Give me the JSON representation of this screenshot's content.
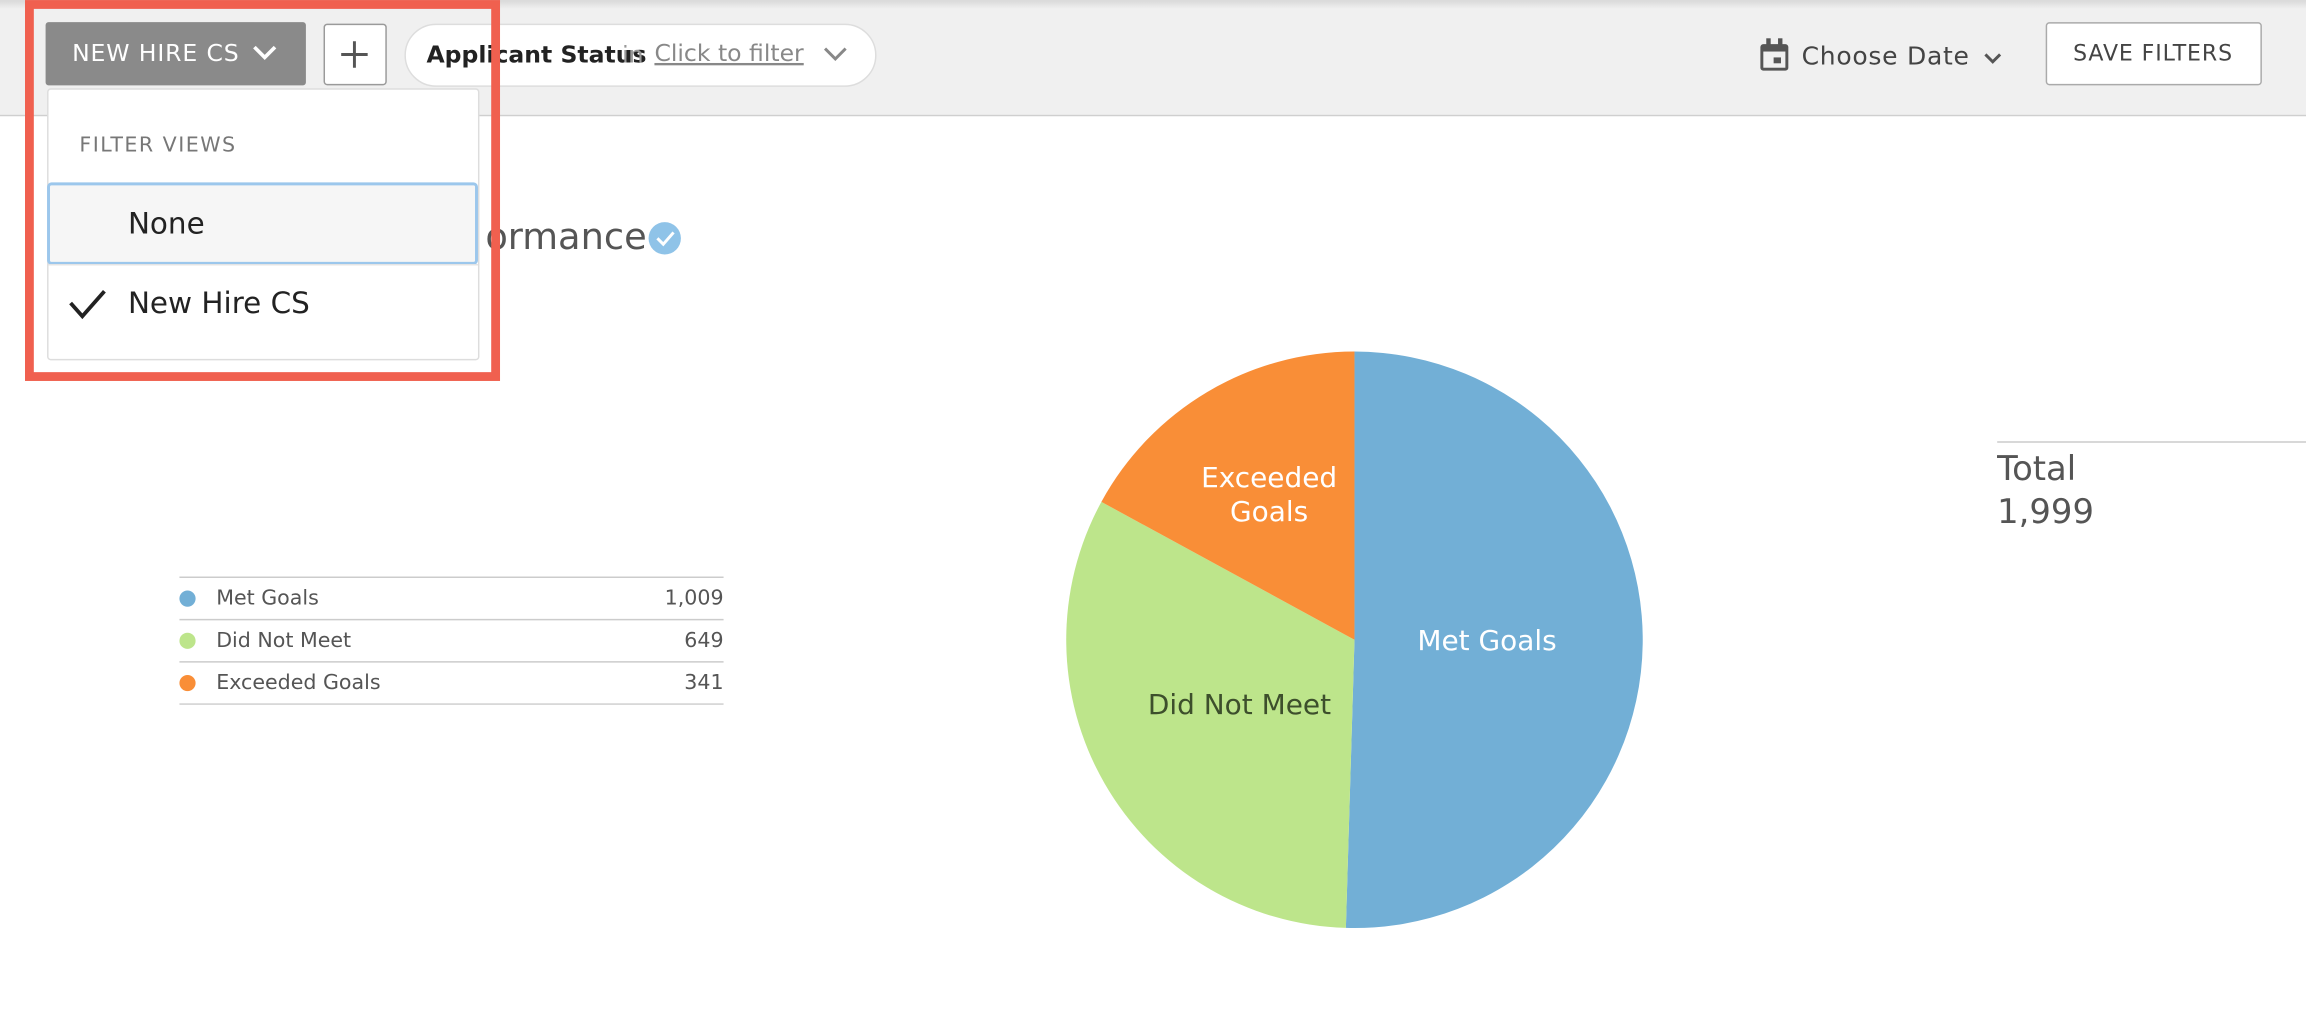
{
  "toolbar": {
    "view_button": "NEW HIRE CS",
    "filter": {
      "field": "Applicant Status",
      "op": "in",
      "link": "Click to filter"
    },
    "date": "Choose Date",
    "save": "SAVE FILTERS"
  },
  "dropdown": {
    "heading": "FILTER VIEWS",
    "options": [
      {
        "label": "None",
        "checked": false
      },
      {
        "label": "New Hire CS",
        "checked": true
      }
    ]
  },
  "chart_data": {
    "type": "pie",
    "title": "ormance",
    "categories": [
      "Met Goals",
      "Did Not Meet",
      "Exceeded Goals"
    ],
    "values": [
      1009,
      649,
      341
    ],
    "value_labels": [
      "1,009",
      "649",
      "341"
    ],
    "colors": [
      "#72afd6",
      "#bde58b",
      "#f98e37"
    ],
    "label_colors": [
      "#ffffff",
      "#3d4f2c",
      "#ffffff"
    ],
    "total_label": "Total",
    "total": {
      "value": 1999,
      "label": "1,999"
    }
  }
}
